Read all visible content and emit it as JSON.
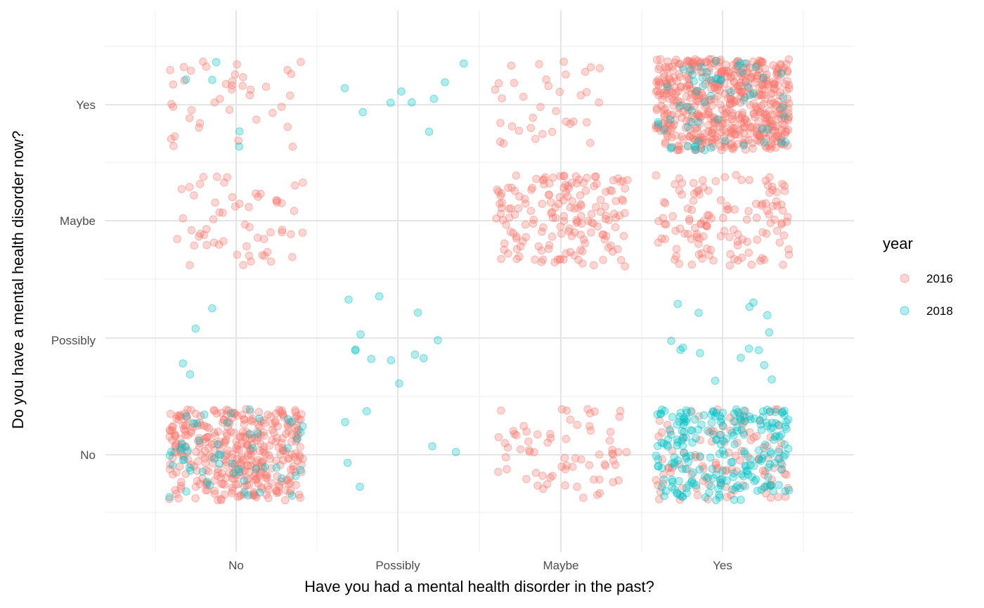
{
  "chart_data": {
    "type": "scatter",
    "jitter": true,
    "xlabel": "Have you had a mental health disorder in the past?",
    "ylabel": "Do you have a mental health disorder now?",
    "x_categories": [
      "No",
      "Possibly",
      "Maybe",
      "Yes"
    ],
    "y_categories": [
      "No",
      "Possibly",
      "Maybe",
      "Yes"
    ],
    "grid": true,
    "legend": {
      "title": "year",
      "position": "right"
    },
    "point_alpha": 0.3,
    "series": [
      {
        "name": "2016",
        "color": "#F8766D",
        "cells": [
          {
            "x": "No",
            "y": "No",
            "count": 380
          },
          {
            "x": "No",
            "y": "Maybe",
            "count": 58
          },
          {
            "x": "No",
            "y": "Yes",
            "count": 40
          },
          {
            "x": "Maybe",
            "y": "No",
            "count": 70
          },
          {
            "x": "Maybe",
            "y": "Maybe",
            "count": 170
          },
          {
            "x": "Maybe",
            "y": "Yes",
            "count": 35
          },
          {
            "x": "Yes",
            "y": "No",
            "count": 110
          },
          {
            "x": "Yes",
            "y": "Maybe",
            "count": 130
          },
          {
            "x": "Yes",
            "y": "Yes",
            "count": 550
          }
        ]
      },
      {
        "name": "2018",
        "color": "#00BFC4",
        "cells": [
          {
            "x": "No",
            "y": "No",
            "count": 55
          },
          {
            "x": "No",
            "y": "Possibly",
            "count": 4
          },
          {
            "x": "No",
            "y": "Yes",
            "count": 5
          },
          {
            "x": "Possibly",
            "y": "No",
            "count": 6
          },
          {
            "x": "Possibly",
            "y": "Possibly",
            "count": 12
          },
          {
            "x": "Possibly",
            "y": "Yes",
            "count": 9
          },
          {
            "x": "Yes",
            "y": "No",
            "count": 230
          },
          {
            "x": "Yes",
            "y": "Possibly",
            "count": 16
          },
          {
            "x": "Yes",
            "y": "Yes",
            "count": 60
          }
        ]
      }
    ]
  }
}
